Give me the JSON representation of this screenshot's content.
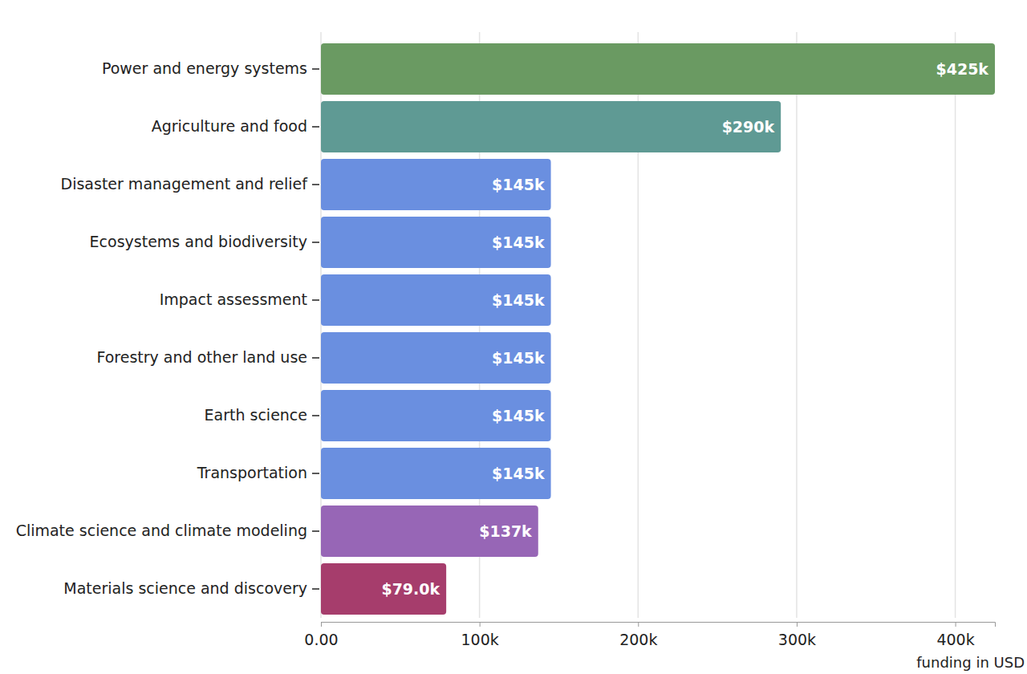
{
  "chart_data": {
    "type": "bar",
    "orientation": "horizontal",
    "categories": [
      "Power and energy systems",
      "Agriculture and food",
      "Disaster management and relief",
      "Ecosystems and biodiversity",
      "Impact assessment",
      "Forestry and other land use",
      "Earth science",
      "Transportation",
      "Climate science and climate modeling",
      "Materials science and discovery"
    ],
    "values": [
      425000,
      290000,
      145000,
      145000,
      145000,
      145000,
      145000,
      145000,
      137000,
      79000
    ],
    "value_labels": [
      "$425k",
      "$290k",
      "$145k",
      "$145k",
      "$145k",
      "$145k",
      "$145k",
      "$145k",
      "$137k",
      "$79.0k"
    ],
    "colors": [
      "#6a9a62",
      "#5f9a94",
      "#6a8fe0",
      "#6a8fe0",
      "#6a8fe0",
      "#6a8fe0",
      "#6a8fe0",
      "#6a8fe0",
      "#9766b6",
      "#a63d6c"
    ],
    "data_labels": true,
    "xlabel": "funding in USD",
    "xlim": [
      0,
      425000
    ],
    "xticks": [
      {
        "value": 0,
        "label": "0.00"
      },
      {
        "value": 100000,
        "label": "100k"
      },
      {
        "value": 200000,
        "label": "200k"
      },
      {
        "value": 300000,
        "label": "300k"
      },
      {
        "value": 400000,
        "label": "400k"
      }
    ],
    "grid": true
  }
}
